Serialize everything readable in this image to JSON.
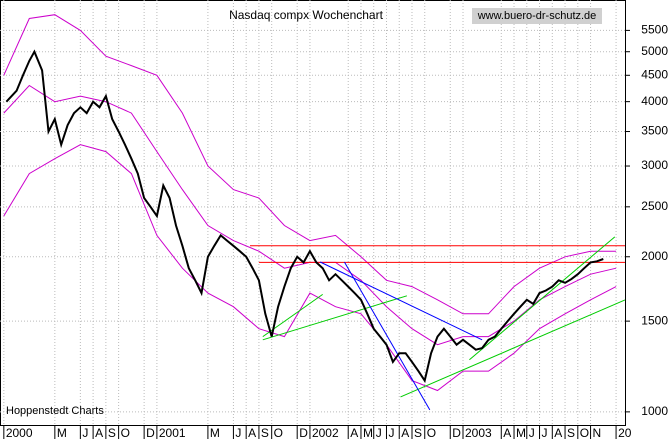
{
  "chart_data": {
    "type": "line",
    "title": "Nasdaq compx Wochenchart",
    "source": "www.buero-dr-schutz.de",
    "credit": "Hoppenstedt Charts",
    "log_scale": true,
    "grid": true,
    "xlim": [
      -0.3,
      48.7
    ],
    "ylim": [
      943,
      6300
    ],
    "yticks": [
      1000,
      1500,
      2000,
      2500,
      3000,
      3500,
      4000,
      4500,
      5000,
      5500
    ],
    "xticks": [
      {
        "value": 0,
        "label": "2000"
      },
      {
        "value": 4,
        "label": "M"
      },
      {
        "value": 6,
        "label": "J"
      },
      {
        "value": 7,
        "label": "A"
      },
      {
        "value": 8,
        "label": "S"
      },
      {
        "value": 9,
        "label": "O"
      },
      {
        "value": 11,
        "label": "D"
      },
      {
        "value": 12,
        "label": "2001"
      },
      {
        "value": 16,
        "label": "M"
      },
      {
        "value": 18,
        "label": "J"
      },
      {
        "value": 19,
        "label": "A"
      },
      {
        "value": 20,
        "label": "S"
      },
      {
        "value": 21,
        "label": "O"
      },
      {
        "value": 23,
        "label": "D"
      },
      {
        "value": 24,
        "label": "2002"
      },
      {
        "value": 27,
        "label": "A"
      },
      {
        "value": 28,
        "label": "M"
      },
      {
        "value": 29,
        "label": "J"
      },
      {
        "value": 30,
        "label": "J"
      },
      {
        "value": 31,
        "label": "A"
      },
      {
        "value": 32,
        "label": "S"
      },
      {
        "value": 33,
        "label": "O"
      },
      {
        "value": 35,
        "label": "D"
      },
      {
        "value": 36,
        "label": "2003"
      },
      {
        "value": 39,
        "label": "A"
      },
      {
        "value": 40,
        "label": "M"
      },
      {
        "value": 41,
        "label": "J"
      },
      {
        "value": 42,
        "label": "J"
      },
      {
        "value": 43,
        "label": "A"
      },
      {
        "value": 44,
        "label": "S"
      },
      {
        "value": 45,
        "label": "O"
      },
      {
        "value": 46,
        "label": "N"
      },
      {
        "value": 48,
        "label": "20"
      }
    ],
    "series": [
      {
        "color": "#000000",
        "width": 2,
        "x": [
          0.2,
          1,
          1.5,
          2,
          2.4,
          3,
          3.5,
          4,
          4.5,
          5,
          5.5,
          6,
          6.5,
          7,
          7.5,
          8,
          8.5,
          9,
          9.5,
          10,
          10.5,
          11,
          11.5,
          12,
          12.5,
          13,
          13.5,
          14,
          14.5,
          15,
          15.5,
          16,
          16.5,
          17,
          17.5,
          18,
          18.5,
          19,
          19.5,
          20,
          20.5,
          21,
          21.5,
          22,
          22.5,
          23,
          23.5,
          24,
          24.5,
          25,
          25.5,
          26,
          26.5,
          27,
          27.5,
          28,
          28.5,
          29,
          29.5,
          30,
          30.5,
          31,
          31.5,
          32,
          32.5,
          33,
          33.5,
          34,
          34.5,
          35,
          35.5,
          36,
          36.5,
          37,
          37.5,
          38,
          38.5,
          39,
          39.5,
          40,
          40.5,
          41,
          41.5,
          42,
          42.5,
          43,
          43.5,
          44,
          44.5,
          45,
          45.5,
          46,
          46.5,
          47
        ],
        "values": [
          4000,
          4200,
          4500,
          4800,
          5000,
          4600,
          3500,
          3700,
          3300,
          3600,
          3800,
          3900,
          3800,
          4000,
          3900,
          4100,
          3700,
          3500,
          3300,
          3100,
          2900,
          2600,
          2500,
          2400,
          2750,
          2600,
          2300,
          2100,
          1900,
          1800,
          1700,
          2000,
          2100,
          2200,
          2150,
          2100,
          2050,
          2000,
          1900,
          1800,
          1550,
          1400,
          1600,
          1750,
          1900,
          2000,
          1950,
          2050,
          1950,
          1900,
          1800,
          1850,
          1800,
          1750,
          1700,
          1650,
          1550,
          1450,
          1400,
          1350,
          1250,
          1300,
          1300,
          1250,
          1200,
          1150,
          1300,
          1400,
          1450,
          1400,
          1350,
          1380,
          1350,
          1320,
          1330,
          1380,
          1400,
          1450,
          1500,
          1550,
          1600,
          1650,
          1620,
          1700,
          1720,
          1750,
          1800,
          1780,
          1810,
          1850,
          1900,
          1950,
          1960,
          1980
        ]
      },
      {
        "color": "#cc00cc",
        "width": 1,
        "x": [
          0,
          2,
          4,
          6,
          8,
          10,
          12,
          14,
          16,
          18,
          20,
          22,
          24,
          26,
          28,
          30,
          32,
          34,
          36,
          38,
          40,
          42,
          44,
          46,
          48
        ],
        "values": [
          4500,
          5800,
          5900,
          5500,
          4900,
          4700,
          4500,
          3800,
          3000,
          2700,
          2600,
          2300,
          2150,
          2200,
          2000,
          1800,
          1750,
          1650,
          1550,
          1550,
          1750,
          1900,
          2000,
          2050,
          2050
        ]
      },
      {
        "color": "#cc00cc",
        "width": 1,
        "x": [
          0,
          2,
          4,
          6,
          8,
          10,
          12,
          14,
          16,
          18,
          20,
          22,
          24,
          26,
          28,
          30,
          32,
          34,
          36,
          38,
          40,
          42,
          44,
          46,
          48
        ],
        "values": [
          3800,
          4300,
          4000,
          4100,
          4000,
          3800,
          3200,
          2700,
          2300,
          2150,
          2050,
          1900,
          1950,
          1950,
          1800,
          1600,
          1450,
          1350,
          1400,
          1400,
          1500,
          1650,
          1750,
          1850,
          1900
        ]
      },
      {
        "color": "#cc00cc",
        "width": 1,
        "x": [
          0,
          2,
          4,
          6,
          8,
          10,
          12,
          14,
          16,
          18,
          20,
          22,
          24,
          26,
          28,
          30,
          32,
          34,
          36,
          38,
          40,
          42,
          44,
          46,
          48
        ],
        "values": [
          2400,
          2900,
          3100,
          3300,
          3200,
          2900,
          2200,
          1900,
          1700,
          1600,
          1450,
          1400,
          1700,
          1600,
          1550,
          1350,
          1150,
          1100,
          1200,
          1200,
          1300,
          1450,
          1550,
          1650,
          1750
        ]
      },
      {
        "color": "#ff0000",
        "width": 1,
        "x": [
          19.3,
          48.7
        ],
        "values": [
          2100,
          2100
        ]
      },
      {
        "color": "#ff0000",
        "width": 1,
        "x": [
          20,
          48.7
        ],
        "values": [
          1950,
          1950
        ]
      },
      {
        "color": "#00cc00",
        "width": 1,
        "x": [
          20.3,
          31.6
        ],
        "values": [
          1380,
          1680
        ]
      },
      {
        "color": "#00cc00",
        "width": 1,
        "x": [
          20.3,
          25
        ],
        "values": [
          1400,
          1690
        ]
      },
      {
        "color": "#00cc00",
        "width": 1,
        "x": [
          31.1,
          48.7
        ],
        "values": [
          1069,
          1649
        ]
      },
      {
        "color": "#00cc00",
        "width": 1,
        "x": [
          36.5,
          47.9
        ],
        "values": [
          1262,
          2186
        ]
      },
      {
        "color": "#0000ff",
        "width": 1,
        "x": [
          26.7,
          33.4
        ],
        "values": [
          1954,
          1009
        ]
      },
      {
        "color": "#0000ff",
        "width": 1,
        "x": [
          24.8,
          37.5
        ],
        "values": [
          1954,
          1380
        ]
      }
    ]
  }
}
